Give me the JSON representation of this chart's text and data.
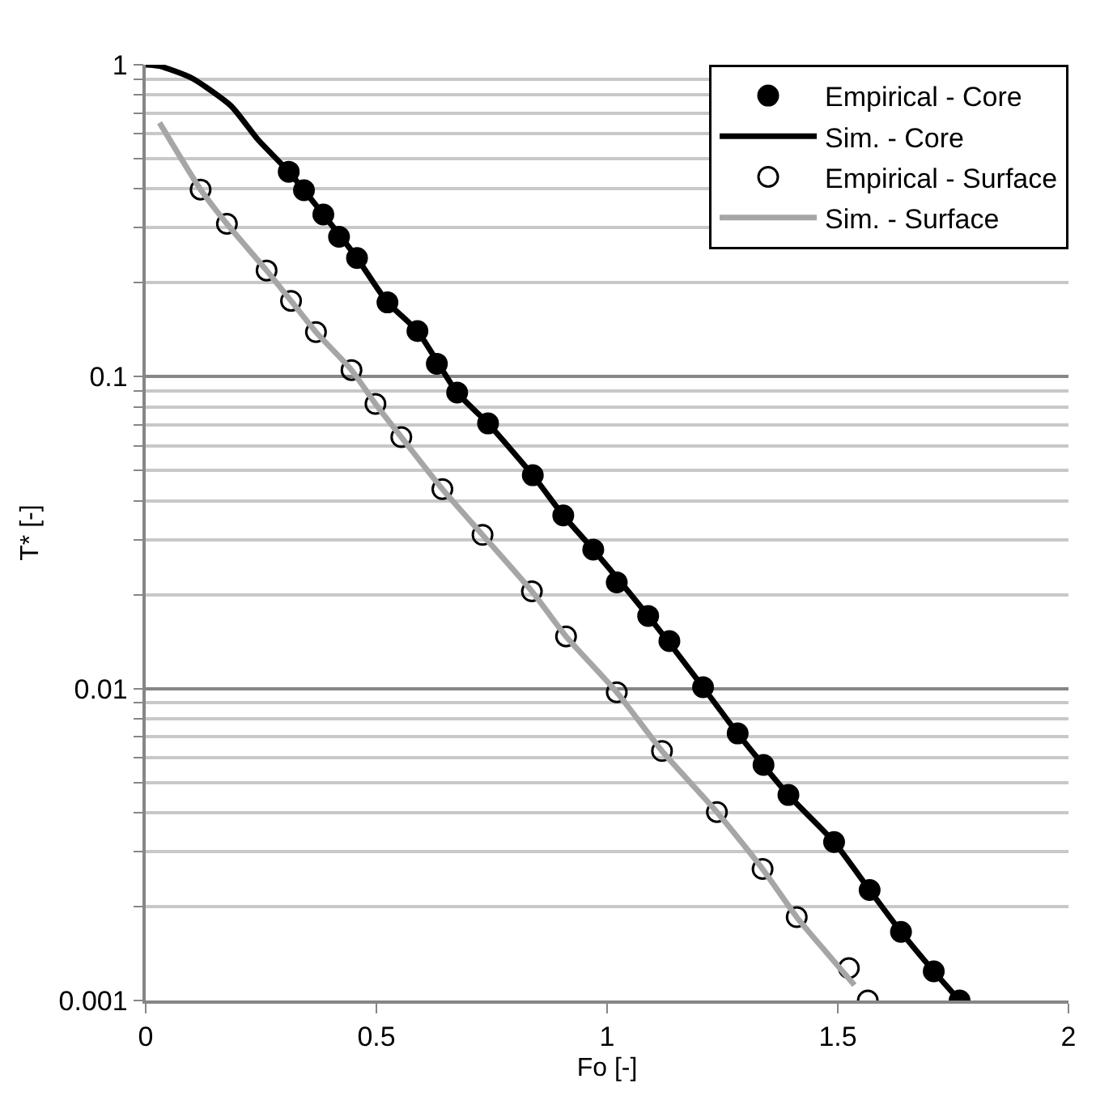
{
  "chart_data": {
    "type": "scatter",
    "xlabel": "Fo [-]",
    "ylabel": "T* [-]",
    "log": "y",
    "grid": "y",
    "legend": "top right",
    "marker": "circle",
    "xlim": [
      0,
      2
    ],
    "xticks": [
      0,
      0.5,
      1,
      1.5,
      2
    ],
    "ylim": [
      0.001,
      1
    ],
    "yticks": [
      0.001,
      0.01,
      0.1,
      1
    ],
    "series": [
      {
        "name": "Empirical - Core",
        "color": "#000000",
        "x": [
          0.31,
          0.343,
          0.385,
          0.419,
          0.458,
          0.524,
          0.589,
          0.631,
          0.675,
          0.742,
          0.839,
          0.905,
          0.97,
          1.021,
          1.089,
          1.135,
          1.208,
          1.283,
          1.339,
          1.393,
          1.492,
          1.569,
          1.637,
          1.708,
          1.764
        ],
        "values": [
          0.454,
          0.396,
          0.331,
          0.281,
          0.24,
          0.173,
          0.14,
          0.11,
          0.0889,
          0.0708,
          0.0483,
          0.0359,
          0.0279,
          0.0219,
          0.0171,
          0.0142,
          0.0101,
          0.00718,
          0.00569,
          0.00456,
          0.00322,
          0.00226,
          0.00166,
          0.00124,
          0.001
        ]
      },
      {
        "name": "Sim. - Core",
        "type": "line",
        "color": "#000000",
        "marker": "none",
        "line_style": "solid",
        "x": [
          0,
          0.03,
          0.1,
          0.185,
          0.243,
          0.31,
          0.385,
          0.458,
          0.524,
          0.589,
          0.675,
          0.742,
          0.839,
          0.905,
          0.97,
          1.089,
          1.208,
          1.283,
          1.393,
          1.492,
          1.569,
          1.637,
          1.708,
          1.764
        ],
        "values": [
          1,
          0.99,
          0.906,
          0.738,
          0.576,
          0.454,
          0.331,
          0.24,
          0.173,
          0.14,
          0.0889,
          0.0708,
          0.0483,
          0.0359,
          0.0279,
          0.0171,
          0.0101,
          0.00718,
          0.00456,
          0.00322,
          0.00226,
          0.00166,
          0.00124,
          0.001
        ]
      },
      {
        "name": "Empirical - Surface",
        "color": "#000000",
        "marker": "circle-open",
        "x": [
          0.119,
          0.176,
          0.262,
          0.315,
          0.369,
          0.446,
          0.498,
          0.554,
          0.643,
          0.73,
          0.837,
          0.911,
          1.021,
          1.119,
          1.238,
          1.337,
          1.411,
          1.524,
          1.565
        ],
        "values": [
          0.398,
          0.309,
          0.219,
          0.175,
          0.139,
          0.105,
          0.0818,
          0.064,
          0.0436,
          0.0311,
          0.0205,
          0.0147,
          0.00973,
          0.00631,
          0.00402,
          0.00264,
          0.00185,
          0.00127,
          0.001
        ]
      },
      {
        "name": "Sim. - Surface",
        "type": "line",
        "color": "#a6a6a6",
        "marker": "none",
        "line_style": "solid",
        "x": [
          0.03,
          0.119,
          0.176,
          0.262,
          0.315,
          0.369,
          0.446,
          0.498,
          0.554,
          0.643,
          0.73,
          0.837,
          0.911,
          1.021,
          1.119,
          1.238,
          1.337,
          1.411,
          1.48,
          1.536
        ],
        "values": [
          0.652,
          0.398,
          0.309,
          0.219,
          0.175,
          0.139,
          0.105,
          0.0818,
          0.064,
          0.0436,
          0.0311,
          0.0205,
          0.0147,
          0.00973,
          0.00631,
          0.00402,
          0.00264,
          0.00185,
          0.0014,
          0.00112
        ]
      }
    ]
  }
}
